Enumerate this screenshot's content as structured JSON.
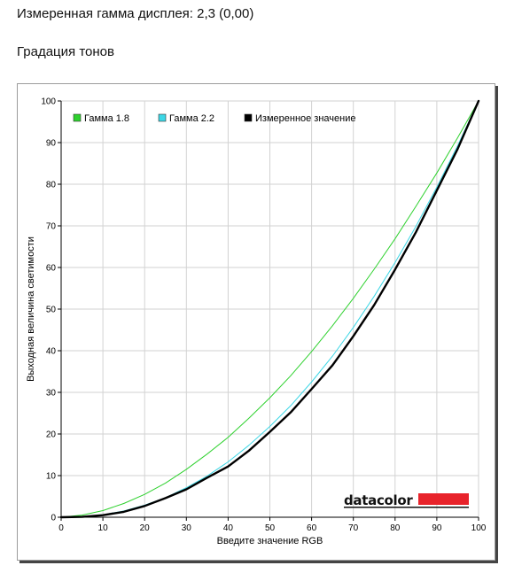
{
  "header": {
    "measured_gamma": "Измеренная гамма дисплея: 2,3 (0,00)",
    "section_title": "Градация тонов"
  },
  "brand": {
    "name": "datacolor",
    "accent_color": "#e8232b"
  },
  "chart_data": {
    "type": "line",
    "xlabel": "Введите значение RGB",
    "ylabel": "Выходная величина светимости",
    "xlim": [
      0,
      100
    ],
    "ylim": [
      0,
      100
    ],
    "x_ticks": [
      "0",
      "10",
      "20",
      "30",
      "40",
      "50",
      "60",
      "70",
      "80",
      "90",
      "100"
    ],
    "y_ticks": [
      "0",
      "10",
      "20",
      "30",
      "40",
      "50",
      "60",
      "70",
      "80",
      "90",
      "100"
    ],
    "grid": true,
    "legend_position": "top-left",
    "x": [
      0,
      5,
      10,
      15,
      20,
      25,
      30,
      35,
      40,
      45,
      50,
      55,
      60,
      65,
      70,
      75,
      80,
      85,
      90,
      95,
      100
    ],
    "series": [
      {
        "name": "Гамма 1.8",
        "color": "#2ed12e",
        "values": [
          0,
          0.5,
          1.6,
          3.3,
          5.5,
          8.2,
          11.5,
          15.2,
          19.2,
          23.8,
          28.7,
          34.0,
          39.8,
          46.0,
          52.6,
          59.6,
          66.9,
          74.7,
          82.7,
          91.2,
          100
        ]
      },
      {
        "name": "Гамма 2.2",
        "color": "#3cd7e6",
        "values": [
          0,
          0.1,
          0.6,
          1.5,
          2.9,
          4.7,
          7.1,
          9.9,
          13.3,
          17.3,
          21.8,
          26.8,
          32.5,
          38.7,
          45.6,
          53.1,
          61.2,
          69.9,
          79.3,
          89.3,
          100
        ]
      },
      {
        "name": "Измеренное значение",
        "color": "#000000",
        "values": [
          0,
          0.1,
          0.5,
          1.3,
          2.7,
          4.6,
          6.7,
          9.5,
          12.2,
          16.0,
          20.5,
          25.2,
          30.8,
          36.5,
          43.5,
          51.0,
          59.5,
          68.5,
          78.5,
          88.5,
          100
        ]
      }
    ]
  }
}
